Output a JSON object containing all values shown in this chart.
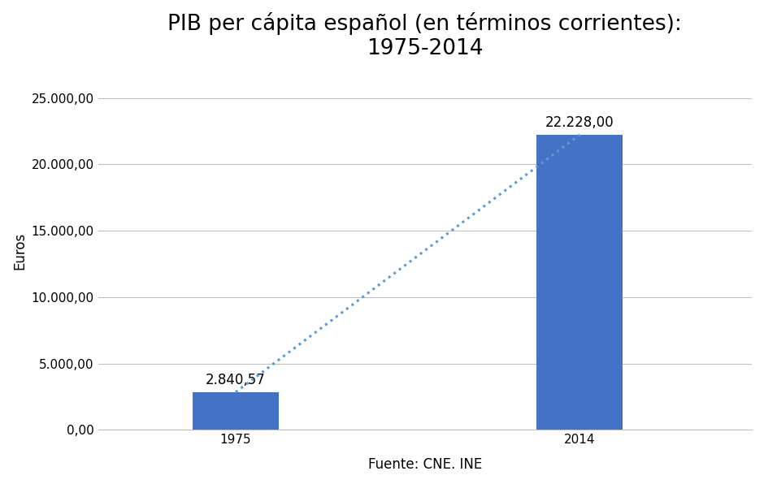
{
  "title": "PIB per cápita español (en términos corrientes):\n1975-2014",
  "categories": [
    "1975",
    "2014"
  ],
  "values": [
    2840.57,
    22228.0
  ],
  "bar_color": "#4472C4",
  "dotted_line_color": "#5B9BD5",
  "ylabel": "Euros",
  "xlabel": "Fuente: CNE. INE",
  "ylim": [
    0,
    27000
  ],
  "yticks": [
    0,
    5000,
    10000,
    15000,
    20000,
    25000
  ],
  "ytick_labels": [
    "0,00",
    "5.000,00",
    "10.000,00",
    "15.000,00",
    "20.000,00",
    "25.000,00"
  ],
  "bar_labels": [
    "2.840,57",
    "22.228,00"
  ],
  "background_color": "#ffffff",
  "title_fontsize": 19,
  "label_fontsize": 12,
  "tick_fontsize": 11,
  "bar_width": 0.5,
  "x_positions": [
    1,
    3
  ],
  "xlim": [
    0.2,
    4.0
  ]
}
